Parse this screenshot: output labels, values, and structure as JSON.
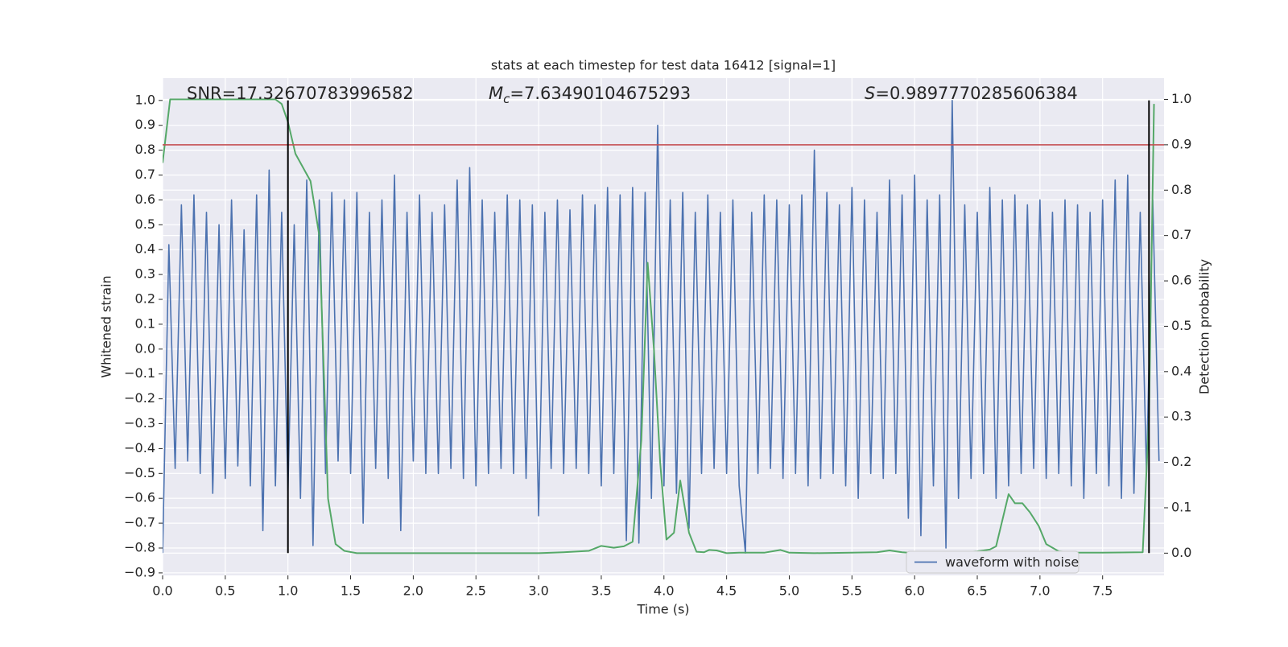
{
  "chart_data": {
    "type": "line",
    "title": "stats at each timestep for test data 16412 [signal=1]",
    "xlabel": "Time (s)",
    "ylabel": "Whitened strain",
    "y2label": "Detection probability",
    "annotations": [
      {
        "text": "SNR=17.32670783996582"
      },
      {
        "symbol": "M",
        "subscript": "c",
        "text": "=7.63490104675293"
      },
      {
        "symbol": "S",
        "text": "=0.9897770285606384"
      }
    ],
    "xlim": [
      0,
      7.99
    ],
    "ylim": [
      -0.91,
      1.09
    ],
    "y2lim": [
      -0.049,
      1.047
    ],
    "grid": true,
    "legend": "lower right",
    "xticks": [
      {
        "value": 0,
        "label": "0.0"
      },
      0.5,
      {
        "value": 1,
        "label": "1.0"
      },
      1.5,
      {
        "value": 2,
        "label": "2.0"
      },
      2.5,
      {
        "value": 3,
        "label": "3.0"
      },
      3.5,
      {
        "value": 4,
        "label": "4.0"
      },
      4.5,
      {
        "value": 5,
        "label": "5.0"
      },
      5.5,
      {
        "value": 6,
        "label": "6.0"
      },
      6.5,
      {
        "value": 7,
        "label": "7.0"
      },
      7.5
    ],
    "yticks": [
      {
        "value": -0.9,
        "label": "−0.9"
      },
      {
        "value": -0.8,
        "label": "−0.8"
      },
      {
        "value": -0.7,
        "label": "−0.7"
      },
      {
        "value": -0.6,
        "label": "−0.6"
      },
      {
        "value": -0.5,
        "label": "−0.5"
      },
      {
        "value": -0.4,
        "label": "−0.4"
      },
      {
        "value": -0.3,
        "label": "−0.3"
      },
      {
        "value": -0.2,
        "label": "−0.2"
      },
      {
        "value": -0.1,
        "label": "−0.1"
      },
      {
        "value": 0,
        "label": "0.0"
      },
      0.1,
      0.2,
      0.3,
      0.4,
      0.5,
      0.6,
      0.7,
      0.8,
      0.9,
      {
        "value": 1,
        "label": "1.0"
      }
    ],
    "y2ticks": [
      {
        "value": 0,
        "label": "0.0"
      },
      0.1,
      0.2,
      0.3,
      0.4,
      0.5,
      0.6,
      0.7,
      0.8,
      0.9,
      {
        "value": 1,
        "label": "1.0"
      }
    ],
    "series": [
      {
        "name": "waveform with noise",
        "color": "#4c72b0",
        "x": [
          0,
          0.05,
          0.1,
          0.15,
          0.2,
          0.25,
          0.3,
          0.35,
          0.4,
          0.45,
          0.5,
          0.55,
          0.6,
          0.65,
          0.7,
          0.75,
          0.8,
          0.85,
          0.9,
          0.95,
          1,
          1.05,
          1.1,
          1.15,
          1.2,
          1.25,
          1.3,
          1.35,
          1.4,
          1.45,
          1.5,
          1.55,
          1.6,
          1.65,
          1.7,
          1.75,
          1.8,
          1.85,
          1.9,
          1.95,
          2,
          2.05,
          2.1,
          2.15,
          2.2,
          2.25,
          2.3,
          2.35,
          2.4,
          2.45,
          2.5,
          2.55,
          2.6,
          2.65,
          2.7,
          2.75,
          2.8,
          2.85,
          2.9,
          2.95,
          3,
          3.05,
          3.1,
          3.15,
          3.2,
          3.25,
          3.3,
          3.35,
          3.4,
          3.45,
          3.5,
          3.55,
          3.6,
          3.65,
          3.7,
          3.75,
          3.8,
          3.85,
          3.9,
          3.95,
          4,
          4.05,
          4.1,
          4.15,
          4.2,
          4.25,
          4.3,
          4.35,
          4.4,
          4.45,
          4.5,
          4.55,
          4.6,
          4.65,
          4.7,
          4.75,
          4.8,
          4.85,
          4.9,
          4.95,
          5,
          5.05,
          5.1,
          5.15,
          5.2,
          5.25,
          5.3,
          5.35,
          5.4,
          5.45,
          5.5,
          5.55,
          5.6,
          5.65,
          5.7,
          5.75,
          5.8,
          5.85,
          5.9,
          5.95,
          6,
          6.05,
          6.1,
          6.15,
          6.2,
          6.25,
          6.3,
          6.35,
          6.4,
          6.45,
          6.5,
          6.55,
          6.6,
          6.65,
          6.7,
          6.75,
          6.8,
          6.85,
          6.9,
          6.95,
          7,
          7.05,
          7.1,
          7.15,
          7.2,
          7.25,
          7.3,
          7.35,
          7.4,
          7.45,
          7.5,
          7.55,
          7.6,
          7.65,
          7.7,
          7.75,
          7.8,
          7.85,
          7.9,
          7.95
        ],
        "values": [
          -0.82,
          0.42,
          -0.48,
          0.58,
          -0.45,
          0.62,
          -0.5,
          0.55,
          -0.58,
          0.5,
          -0.52,
          0.6,
          -0.47,
          0.48,
          -0.55,
          0.62,
          -0.73,
          0.72,
          -0.55,
          0.55,
          -0.57,
          0.5,
          -0.6,
          0.68,
          -0.79,
          0.6,
          -0.5,
          0.63,
          -0.45,
          0.6,
          -0.5,
          0.63,
          -0.7,
          0.55,
          -0.48,
          0.6,
          -0.52,
          0.7,
          -0.73,
          0.55,
          -0.45,
          0.62,
          -0.5,
          0.55,
          -0.5,
          0.58,
          -0.48,
          0.68,
          -0.52,
          0.73,
          -0.55,
          0.6,
          -0.5,
          0.55,
          -0.48,
          0.62,
          -0.5,
          0.6,
          -0.52,
          0.58,
          -0.67,
          0.55,
          -0.48,
          0.6,
          -0.5,
          0.56,
          -0.48,
          0.62,
          -0.5,
          0.58,
          -0.55,
          0.65,
          -0.5,
          0.62,
          -0.77,
          0.65,
          -0.78,
          0.63,
          -0.6,
          0.9,
          -0.55,
          0.6,
          -0.58,
          0.63,
          -0.72,
          0.55,
          -0.5,
          0.62,
          -0.48,
          0.55,
          -0.5,
          0.6,
          -0.55,
          -0.82,
          0.55,
          -0.5,
          0.62,
          -0.48,
          0.6,
          -0.52,
          0.58,
          -0.5,
          0.62,
          -0.55,
          0.8,
          -0.52,
          0.63,
          -0.5,
          0.58,
          -0.55,
          0.65,
          -0.6,
          0.6,
          -0.5,
          0.55,
          -0.52,
          0.68,
          -0.5,
          0.62,
          -0.68,
          0.7,
          -0.75,
          0.6,
          -0.55,
          0.62,
          -0.8,
          1.0,
          -0.6,
          0.58,
          -0.52,
          0.55,
          -0.5,
          0.65,
          -0.6,
          0.6,
          -0.55,
          0.62,
          -0.5,
          0.58,
          -0.48,
          0.6,
          -0.52,
          0.55,
          -0.5,
          0.6,
          -0.55,
          0.58,
          -0.6,
          0.55,
          -0.5,
          0.6,
          -0.55,
          0.68,
          -0.6,
          0.7,
          -0.58,
          0.55,
          -0.5,
          0.6,
          -0.45
        ]
      },
      {
        "color": "#55a868",
        "axis": "y2",
        "x": [
          0,
          0.06,
          0.1,
          0.9,
          0.95,
          1,
          1.06,
          1.18,
          1.25,
          1.32,
          1.38,
          1.45,
          1.55,
          1.7,
          2,
          2.5,
          3,
          3.2,
          3.4,
          3.5,
          3.6,
          3.68,
          3.75,
          3.82,
          3.87,
          3.92,
          3.97,
          4.02,
          4.08,
          4.13,
          4.2,
          4.26,
          4.32,
          4.36,
          4.42,
          4.5,
          4.6,
          4.8,
          4.93,
          5,
          5.2,
          5.5,
          5.7,
          5.8,
          5.9,
          6,
          6.3,
          6.5,
          6.6,
          6.65,
          6.75,
          6.8,
          6.86,
          6.92,
          6.99,
          7.05,
          7.15,
          7.3,
          7.5,
          7.82,
          7.87,
          7.91
        ],
        "values": [
          0.86,
          1.0,
          1.0,
          1.0,
          0.99,
          0.95,
          0.88,
          0.82,
          0.7,
          0.12,
          0.02,
          0.005,
          0,
          0,
          0,
          0,
          0,
          0.002,
          0.005,
          0.016,
          0.012,
          0.015,
          0.025,
          0.25,
          0.64,
          0.45,
          0.2,
          0.03,
          0.045,
          0.16,
          0.045,
          0.003,
          0.002,
          0.007,
          0.006,
          0,
          0.001,
          0.001,
          0.007,
          0.001,
          0,
          0.001,
          0.002,
          0.006,
          0.002,
          0,
          0,
          0.004,
          0.008,
          0.015,
          0.13,
          0.11,
          0.11,
          0.09,
          0.06,
          0.02,
          0.004,
          0.001,
          0.001,
          0.002,
          0.3,
          0.99
        ]
      }
    ],
    "threshold": {
      "value": 0.9,
      "axis": "y2",
      "color": "#c44e52"
    },
    "vlines": {
      "x": [
        1.0,
        7.87
      ],
      "ymin": -0.82,
      "ymax": 1.0,
      "color": "#000000"
    }
  }
}
